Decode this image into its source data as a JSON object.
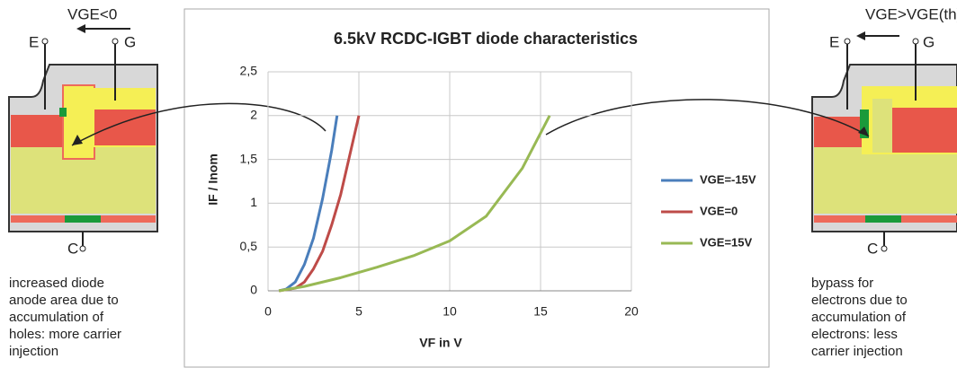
{
  "chart_data": {
    "type": "line",
    "title": "6.5kV RCDC-IGBT diode characteristics",
    "x_label": "VF in V",
    "y_label": "IF / Inom",
    "xlim": [
      0,
      20
    ],
    "xticks": [
      0,
      5,
      10,
      15,
      20
    ],
    "ylim": [
      0,
      2.5
    ],
    "yticks": [
      0,
      {
        "value": 0.5,
        "label": "0,5"
      },
      1,
      {
        "value": 1.5,
        "label": "1,5"
      },
      2,
      {
        "value": 2.5,
        "label": "2,5"
      }
    ],
    "grid": true,
    "series": [
      {
        "name": "VGE=-15V",
        "color": "#4a7ebb",
        "x": [
          0.6,
          1,
          1.5,
          2,
          2.5,
          3,
          3.5,
          3.8
        ],
        "values": [
          0,
          0.02,
          0.1,
          0.3,
          0.6,
          1.05,
          1.6,
          2.0
        ]
      },
      {
        "name": "VGE=0",
        "color": "#be4b48",
        "x": [
          0.6,
          1.5,
          2,
          2.5,
          3,
          3.5,
          4,
          4.5,
          5
        ],
        "values": [
          0,
          0.03,
          0.1,
          0.25,
          0.45,
          0.75,
          1.1,
          1.55,
          2.0
        ]
      },
      {
        "name": "VGE=15V",
        "color": "#98b954",
        "x": [
          0.6,
          2,
          4,
          6,
          8,
          10,
          12,
          14,
          15.5
        ],
        "values": [
          0,
          0.05,
          0.15,
          0.27,
          0.4,
          0.57,
          0.85,
          1.4,
          2.0
        ]
      }
    ]
  },
  "left_diagram": {
    "condition": "VGE<0",
    "emitter": "E",
    "gate": "G",
    "collector": "C",
    "caption": [
      "increased diode",
      "anode area due to",
      "accumulation of",
      "holes: more carrier",
      "injection"
    ]
  },
  "right_diagram": {
    "condition": "VGE>VGE(th)",
    "emitter": "E",
    "gate": "G",
    "collector": "C",
    "caption": [
      "bypass for",
      "electrons due to",
      "accumulation of",
      "electrons: less",
      "carrier injection"
    ]
  }
}
